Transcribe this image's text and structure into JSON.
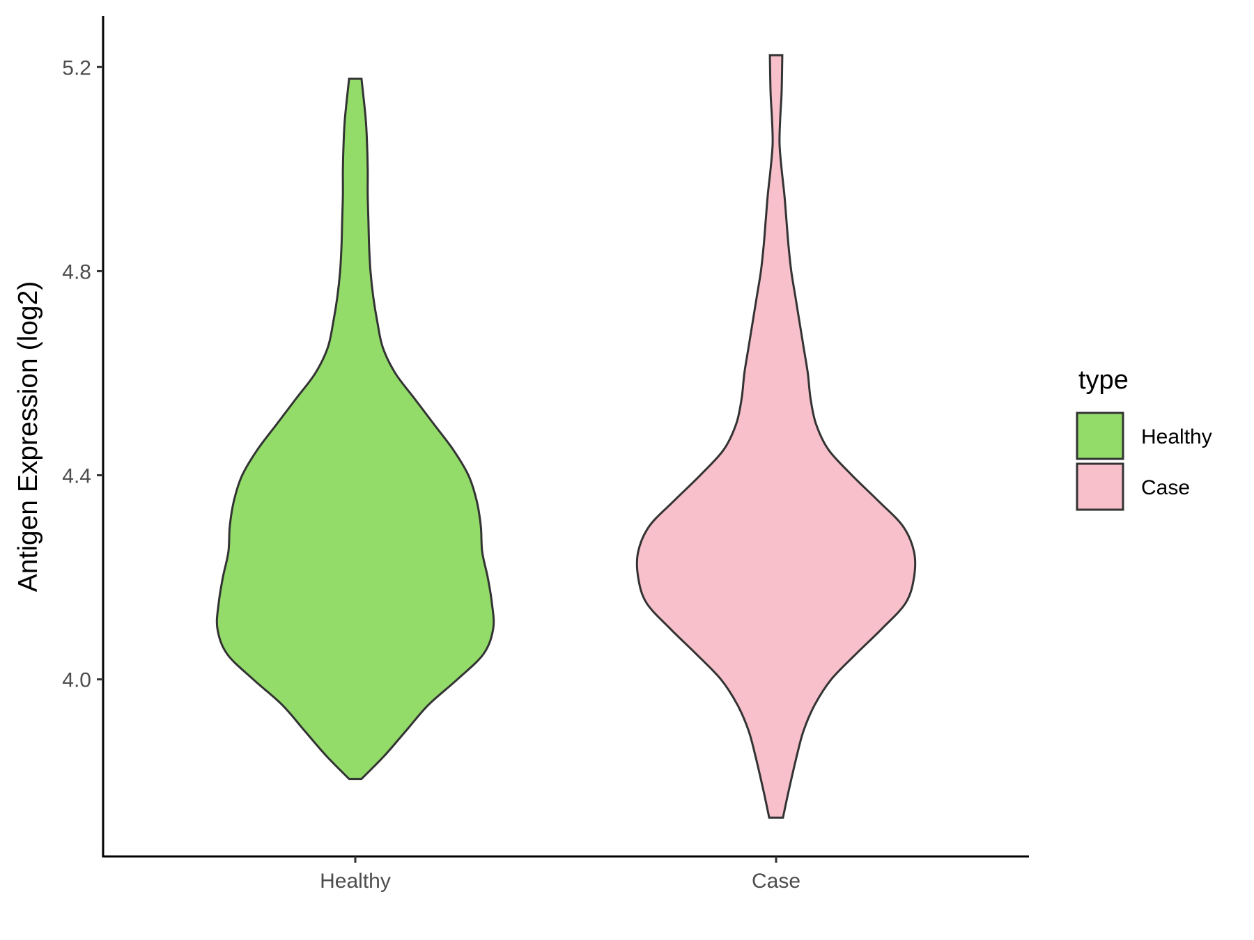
{
  "chart_data": {
    "type": "violin",
    "title": "",
    "xlabel": "",
    "ylabel": "Antigen Expression (log2)",
    "ylim": [
      3.653,
      5.3
    ],
    "yticks": [
      4.0,
      4.4,
      4.8,
      5.2
    ],
    "ytick_labels": [
      "4.0",
      "4.4",
      "4.8",
      "5.2"
    ],
    "categories": [
      "Healthy",
      "Case"
    ],
    "series": [
      {
        "name": "Healthy",
        "color": "#93dc6a",
        "y_min": 3.805,
        "y_max": 5.177,
        "density_profile": [
          [
            3.805,
            0.045
          ],
          [
            3.85,
            0.21
          ],
          [
            3.9,
            0.37
          ],
          [
            3.95,
            0.53
          ],
          [
            4.0,
            0.74
          ],
          [
            4.05,
            0.93
          ],
          [
            4.1,
            1.0
          ],
          [
            4.15,
            0.99
          ],
          [
            4.2,
            0.96
          ],
          [
            4.25,
            0.92
          ],
          [
            4.3,
            0.91
          ],
          [
            4.35,
            0.88
          ],
          [
            4.4,
            0.82
          ],
          [
            4.45,
            0.71
          ],
          [
            4.5,
            0.57
          ],
          [
            4.55,
            0.43
          ],
          [
            4.6,
            0.29
          ],
          [
            4.65,
            0.2
          ],
          [
            4.7,
            0.16
          ],
          [
            4.75,
            0.13
          ],
          [
            4.8,
            0.11
          ],
          [
            4.85,
            0.1
          ],
          [
            4.9,
            0.095
          ],
          [
            4.95,
            0.09
          ],
          [
            5.0,
            0.09
          ],
          [
            5.05,
            0.085
          ],
          [
            5.1,
            0.075
          ],
          [
            5.177,
            0.045
          ]
        ]
      },
      {
        "name": "Case",
        "color": "#f7c0cb",
        "y_min": 3.729,
        "y_max": 5.223,
        "density_profile": [
          [
            3.729,
            0.05
          ],
          [
            3.78,
            0.09
          ],
          [
            3.85,
            0.15
          ],
          [
            3.9,
            0.2
          ],
          [
            3.95,
            0.28
          ],
          [
            4.0,
            0.4
          ],
          [
            4.05,
            0.58
          ],
          [
            4.1,
            0.77
          ],
          [
            4.15,
            0.94
          ],
          [
            4.2,
            1.0
          ],
          [
            4.25,
            1.0
          ],
          [
            4.3,
            0.92
          ],
          [
            4.35,
            0.74
          ],
          [
            4.4,
            0.55
          ],
          [
            4.45,
            0.38
          ],
          [
            4.5,
            0.29
          ],
          [
            4.55,
            0.25
          ],
          [
            4.6,
            0.23
          ],
          [
            4.65,
            0.2
          ],
          [
            4.7,
            0.17
          ],
          [
            4.75,
            0.14
          ],
          [
            4.8,
            0.11
          ],
          [
            4.85,
            0.09
          ],
          [
            4.9,
            0.075
          ],
          [
            4.95,
            0.06
          ],
          [
            5.0,
            0.04
          ],
          [
            5.05,
            0.025
          ],
          [
            5.1,
            0.03
          ],
          [
            5.15,
            0.04
          ],
          [
            5.223,
            0.045
          ]
        ]
      }
    ],
    "legend": {
      "title": "type",
      "position": "right",
      "entries": [
        {
          "label": "Healthy",
          "color": "#93dc6a"
        },
        {
          "label": "Case",
          "color": "#f7c0cb"
        }
      ]
    },
    "grid": false
  }
}
